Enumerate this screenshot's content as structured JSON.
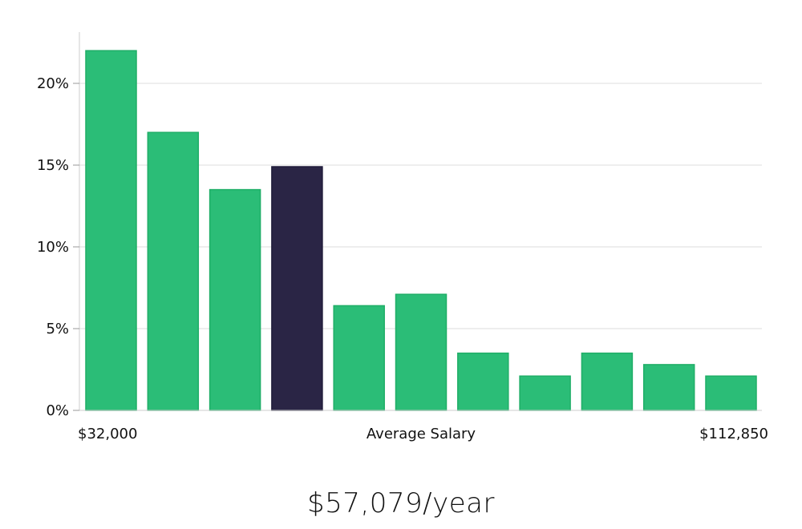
{
  "chart_data": {
    "type": "bar",
    "values": [
      22,
      17,
      13.5,
      14.9,
      6.4,
      7.1,
      3.5,
      2.1,
      3.5,
      2.8,
      2.1
    ],
    "highlight_index": 3,
    "ylim": [
      0,
      23
    ],
    "yticks": [
      0,
      5,
      10,
      15,
      20
    ],
    "ytick_labels": [
      "0%",
      "5%",
      "10%",
      "15%",
      "20%"
    ],
    "xlabel": "Average Salary",
    "x_min_label": "$32,000",
    "x_max_label": "$112,850",
    "grid": true,
    "colors": {
      "bar": "#2bbd77",
      "bar_stroke": "#1fae67",
      "highlight": "#2a2545",
      "grid": "#dddddd",
      "axis": "#cccccc"
    }
  },
  "summary": {
    "salary_text": "$57,079/year"
  }
}
